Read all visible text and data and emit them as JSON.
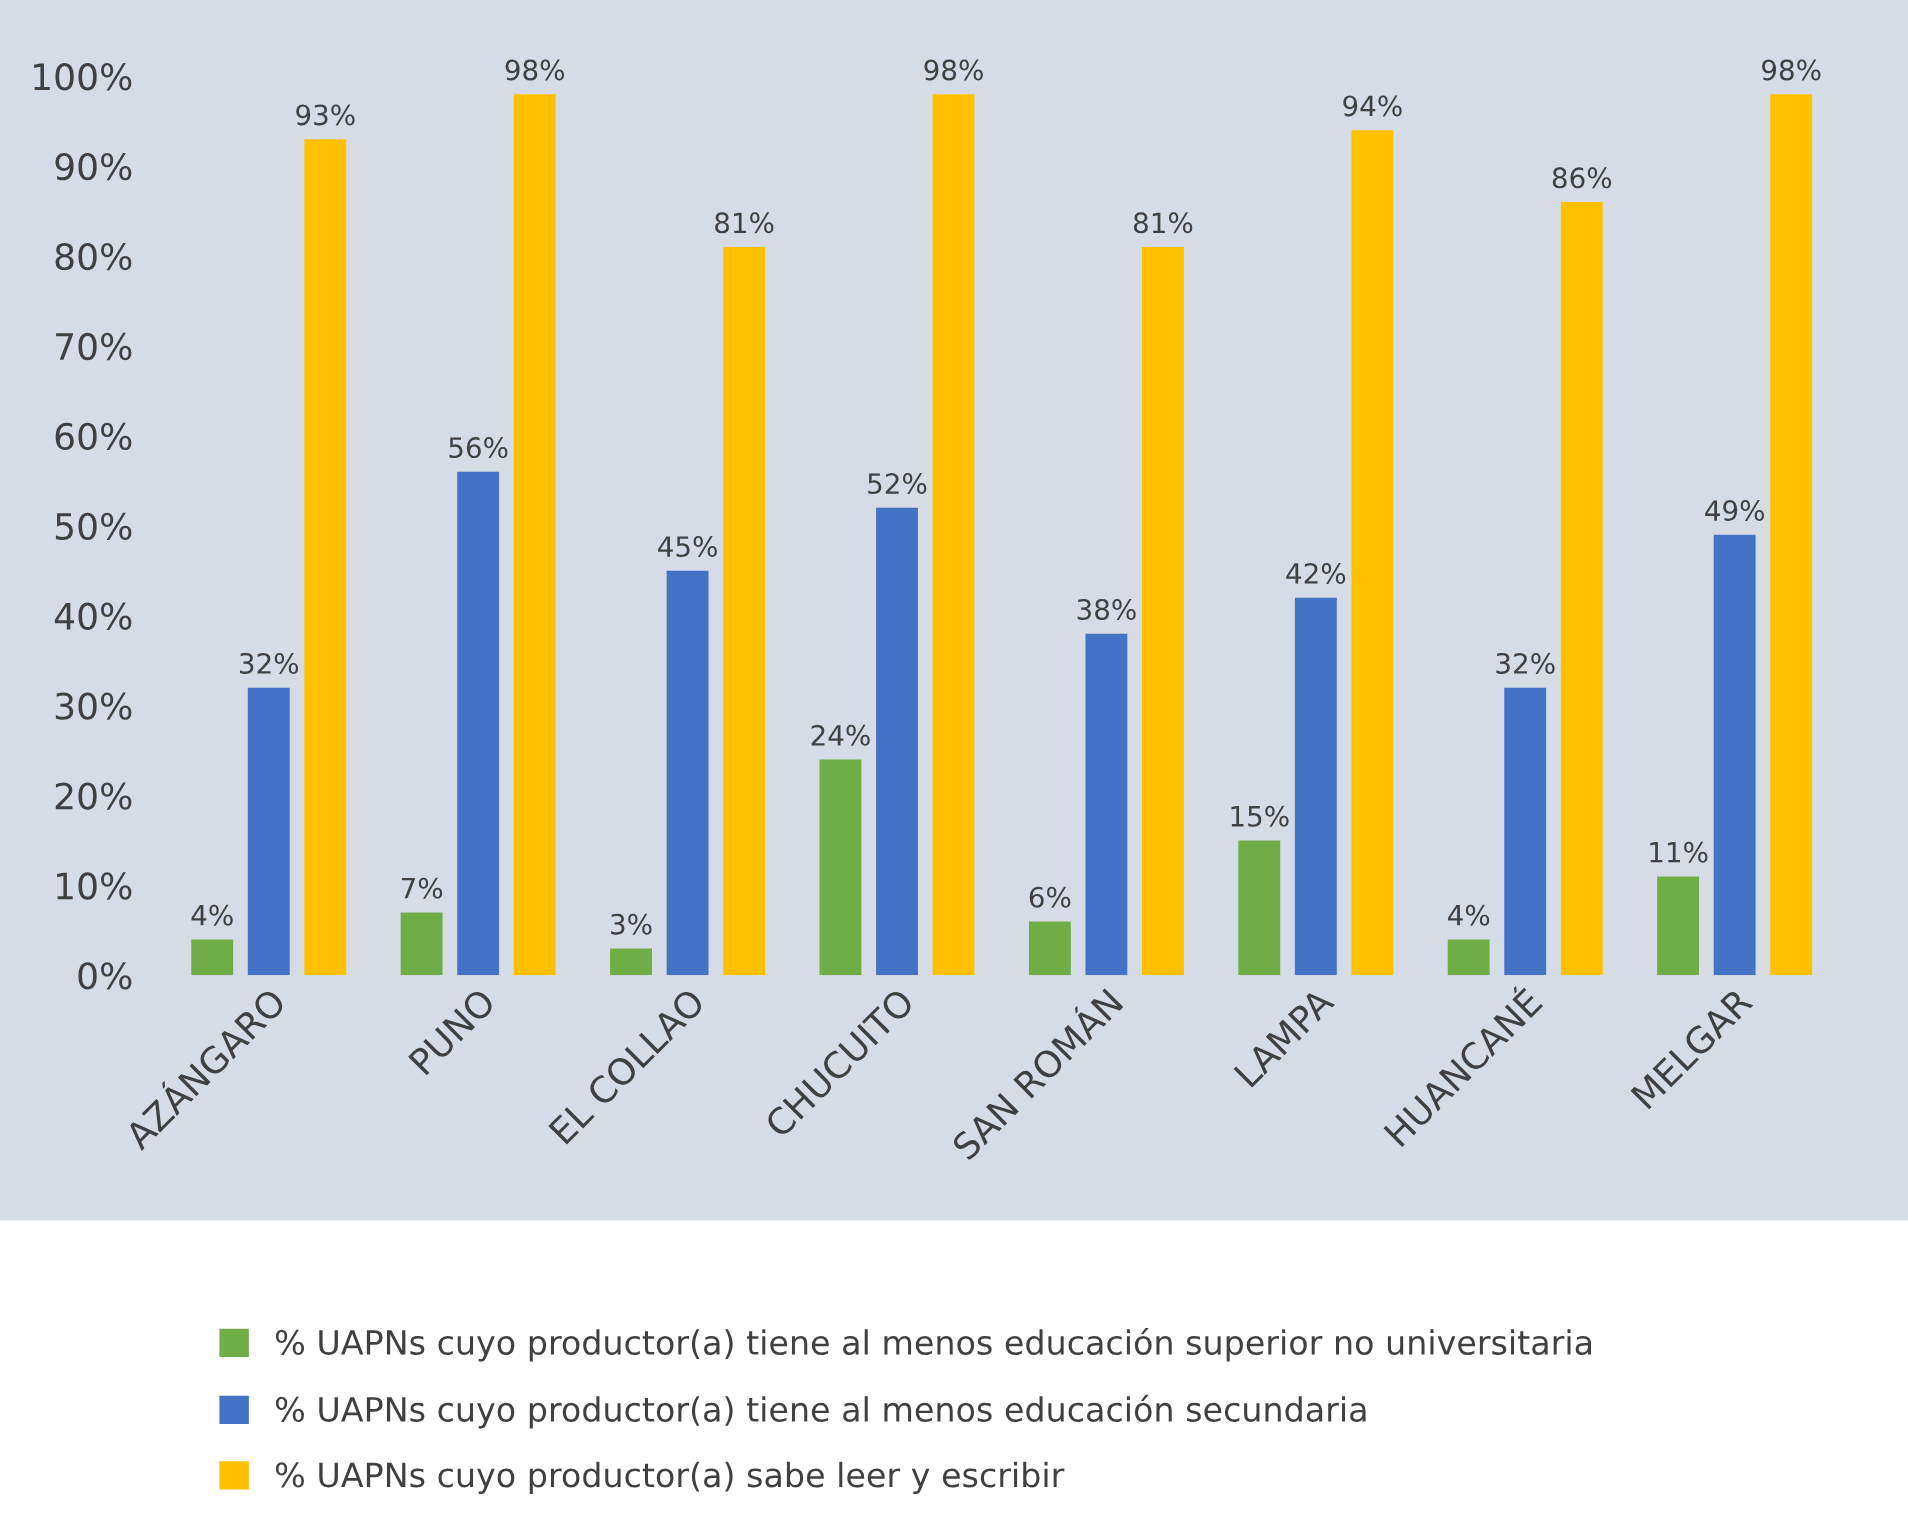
{
  "chart_data": {
    "type": "bar",
    "categories": [
      "AZÁNGARO",
      "PUNO",
      "EL COLLAO",
      "CHUCUITO",
      "SAN ROMÁN",
      "LAMPA",
      "HUANCANÉ",
      "MELGAR"
    ],
    "series": [
      {
        "name": "% UAPNs cuyo productor(a) tiene al menos educación superior no universitaria",
        "color": "#70ad47",
        "values": [
          4,
          7,
          3,
          24,
          6,
          15,
          4,
          11
        ],
        "value_labels": [
          "4%",
          "7%",
          "3%",
          "24%",
          "6%",
          "15%",
          "4%",
          "11%"
        ]
      },
      {
        "name": "% UAPNs cuyo productor(a) tiene al menos educación secundaria",
        "color": "#4472c4",
        "values": [
          32,
          56,
          45,
          52,
          38,
          42,
          32,
          49
        ],
        "value_labels": [
          "32%",
          "56%",
          "45%",
          "52%",
          "38%",
          "42%",
          "32%",
          "49%"
        ]
      },
      {
        "name": "% UAPNs cuyo productor(a) sabe leer y escribir",
        "color": "#ffc000",
        "values": [
          93,
          98,
          81,
          98,
          81,
          94,
          86,
          98
        ],
        "value_labels": [
          "93%",
          "98%",
          "81%",
          "98%",
          "81%",
          "94%",
          "86%",
          "98%"
        ]
      }
    ],
    "ylim": [
      0,
      100
    ],
    "yticks": [
      {
        "value": 0,
        "label": "0%"
      },
      {
        "value": 10,
        "label": "10%"
      },
      {
        "value": 20,
        "label": "20%"
      },
      {
        "value": 30,
        "label": "30%"
      },
      {
        "value": 40,
        "label": "40%"
      },
      {
        "value": 50,
        "label": "50%"
      },
      {
        "value": 60,
        "label": "60%"
      },
      {
        "value": 70,
        "label": "70%"
      },
      {
        "value": 80,
        "label": "80%"
      },
      {
        "value": 90,
        "label": "90%"
      },
      {
        "value": 100,
        "label": "100%"
      }
    ],
    "grid": false,
    "legend": "bottom"
  }
}
